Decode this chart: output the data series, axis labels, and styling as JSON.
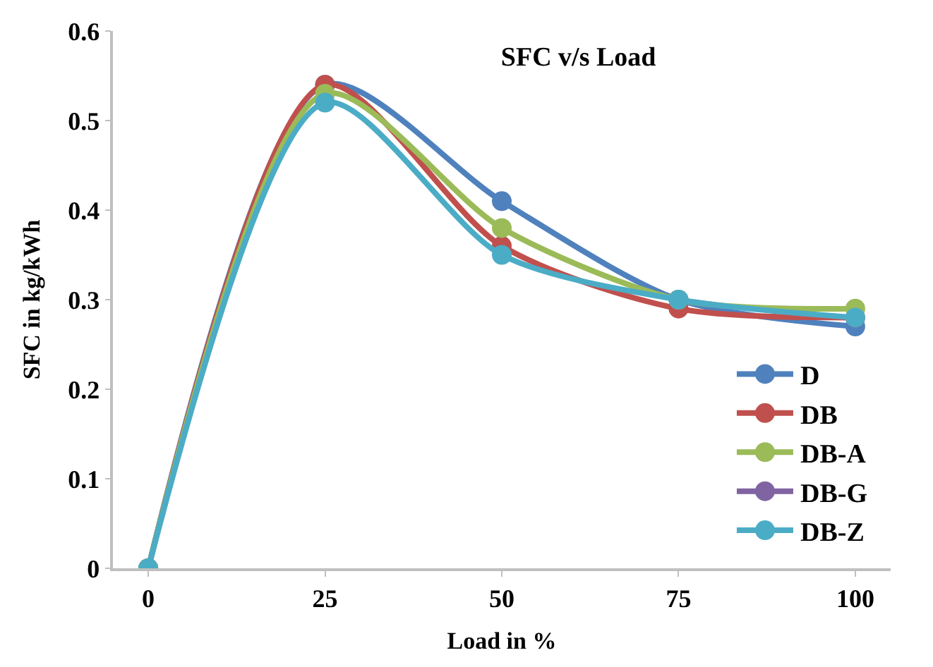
{
  "chart_data": {
    "type": "line",
    "title": "SFC v/s Load",
    "xlabel": "Load in %",
    "ylabel": "SFC in kg/kWh",
    "x": [
      0,
      25,
      50,
      75,
      100
    ],
    "series": [
      {
        "name": "D",
        "color": "#4f81bd",
        "values": [
          0,
          0.54,
          0.41,
          0.3,
          0.27
        ]
      },
      {
        "name": "DB",
        "color": "#c0504d",
        "values": [
          0,
          0.54,
          0.36,
          0.29,
          0.28
        ]
      },
      {
        "name": "DB-A",
        "color": "#9bbb59",
        "values": [
          0,
          0.53,
          0.38,
          0.3,
          0.29
        ]
      },
      {
        "name": "DB-G",
        "color": "#8064a2",
        "values": [
          null,
          null,
          null,
          null,
          null
        ]
      },
      {
        "name": "DB-Z",
        "color": "#4bacc6",
        "values": [
          0,
          0.52,
          0.35,
          0.3,
          0.28
        ]
      }
    ],
    "xlim": [
      -5,
      105
    ],
    "xticks": [
      0,
      25,
      50,
      75,
      100
    ],
    "ylim": [
      0,
      0.6
    ],
    "yticks": [
      {
        "value": 0,
        "label": "0"
      },
      0.1,
      0.2,
      0.3,
      0.4,
      0.5,
      0.6
    ],
    "grid": false,
    "legend": "bottom right",
    "marker": "circle",
    "line_style": "solid"
  }
}
